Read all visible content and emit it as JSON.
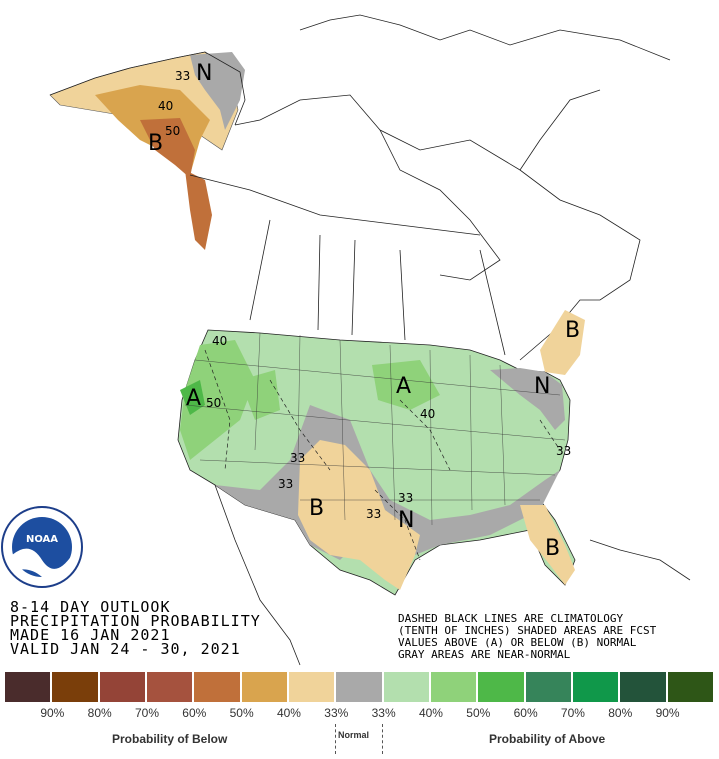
{
  "title_block": {
    "line1": "8-14 DAY OUTLOOK",
    "line2": "PRECIPITATION PROBABILITY",
    "line3": "MADE  16 JAN 2021",
    "line4": "VALID  JAN 24 - 30, 2021"
  },
  "disclaimer": {
    "line1": "DASHED BLACK LINES ARE CLIMATOLOGY",
    "line2": "(TENTH OF INCHES) SHADED AREAS ARE FCST",
    "line3": "VALUES ABOVE (A) OR BELOW (B) NORMAL",
    "line4": "GRAY AREAS ARE NEAR-NORMAL"
  },
  "logo": {
    "text": "NOAA"
  },
  "region_labels": [
    "N",
    "B",
    "A",
    "A",
    "B",
    "N",
    "N",
    "B",
    "B"
  ],
  "contour_labels": [
    "33",
    "40",
    "50",
    "40",
    "50",
    "33",
    "33",
    "40",
    "33",
    "33",
    "33"
  ],
  "legend": {
    "colors": [
      "#4a2c2c",
      "#7a3e0a",
      "#944437",
      "#a5523e",
      "#c0703a",
      "#d9a44e",
      "#f0d39a",
      "#a9a9a9",
      "#b3dfae",
      "#8fd27a",
      "#4eb848",
      "#36845a",
      "#10984a",
      "#23533a",
      "#2e5617"
    ],
    "percents": [
      "90%",
      "80%",
      "70%",
      "60%",
      "50%",
      "40%",
      "33%",
      "33%",
      "40%",
      "50%",
      "60%",
      "70%",
      "80%",
      "90%"
    ],
    "below_label": "Probability of Below",
    "normal_label": "Normal",
    "above_label": "Probability of Above"
  }
}
